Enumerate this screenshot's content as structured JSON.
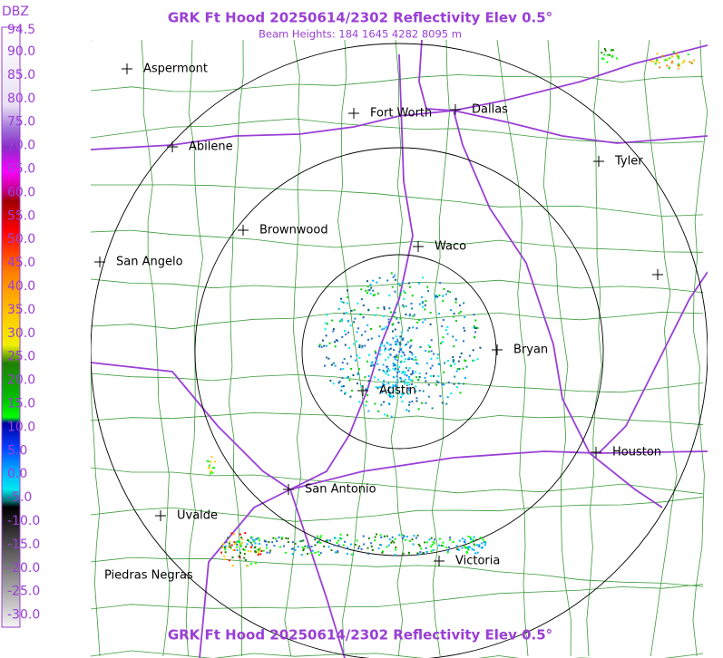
{
  "header": {
    "title": "GRK Ft Hood 20250614/2302 Reflectivity Elev 0.5°",
    "subtitle": "Beam Heights: 184 1645 4282 8095 m",
    "footer_title": "GRK Ft Hood 20250614/2302 Reflectivity Elev 0.5°"
  },
  "legend": {
    "unit": "DBZ",
    "labels": [
      "94.5",
      "90.0",
      "85.0",
      "80.0",
      "75.0",
      "70.0",
      "65.0",
      "60.0",
      "55.0",
      "50.0",
      "45.0",
      "40.0",
      "35.0",
      "30.0",
      "25.0",
      "20.0",
      "15.0",
      "10.0",
      "5.0",
      "0.0",
      "-5.0",
      "-10.0",
      "-15.0",
      "-20.0",
      "-25.0",
      "-30.0"
    ]
  },
  "cities": [
    "Aspermont",
    "Fort Worth",
    "Dallas",
    "Abilene",
    "Tyler",
    "Brownwood",
    "Waco",
    "San Angelo",
    "Bryan",
    "Austin",
    "Houston",
    "San Antonio",
    "Uvalde",
    "Victoria",
    "Piedras Negras"
  ]
}
